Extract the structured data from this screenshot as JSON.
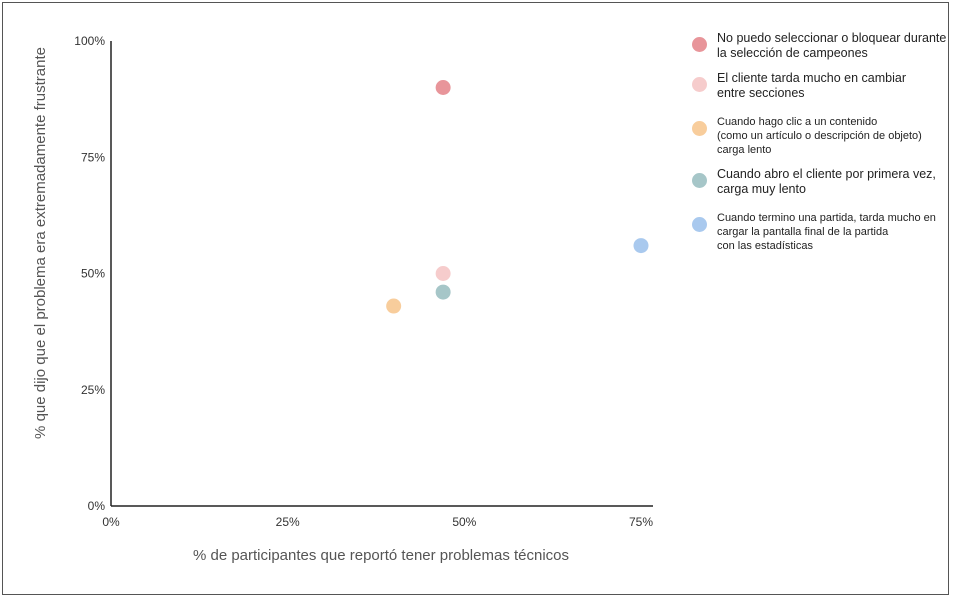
{
  "chart_data": {
    "type": "scatter",
    "xlabel": "% de participantes que reportó tener problemas técnicos",
    "ylabel": "% que dijo que el problema era extremadamente frustrante",
    "xlim": [
      0,
      75
    ],
    "ylim": [
      0,
      100
    ],
    "x_ticks": [
      "0%",
      "25%",
      "50%",
      "75%"
    ],
    "y_ticks": [
      "0%",
      "25%",
      "50%",
      "75%",
      "100%"
    ],
    "grid": false,
    "legend_position": "right",
    "series": [
      {
        "name": "No puedo seleccionar o bloquear durante\nla selección de campeones",
        "color": "#e8959a",
        "x": 47,
        "y": 90
      },
      {
        "name": "El cliente tarda mucho en cambiar\nentre secciones",
        "color": "#f6cccc",
        "x": 47,
        "y": 50
      },
      {
        "name": "Cuando hago clic a un contenido\n(como un artículo o descripción de objeto)\ncarga lento",
        "color": "#f8cd9c",
        "x": 40,
        "y": 43
      },
      {
        "name": "Cuando abro el cliente por primera vez,\ncarga muy lento",
        "color": "#a6c6c8",
        "x": 47,
        "y": 46
      },
      {
        "name": "Cuando termino una partida, tarda mucho en\ncargar la pantalla final de la partida\ncon las estadísticas",
        "color": "#a9c9ee",
        "x": 75,
        "y": 56
      }
    ]
  }
}
